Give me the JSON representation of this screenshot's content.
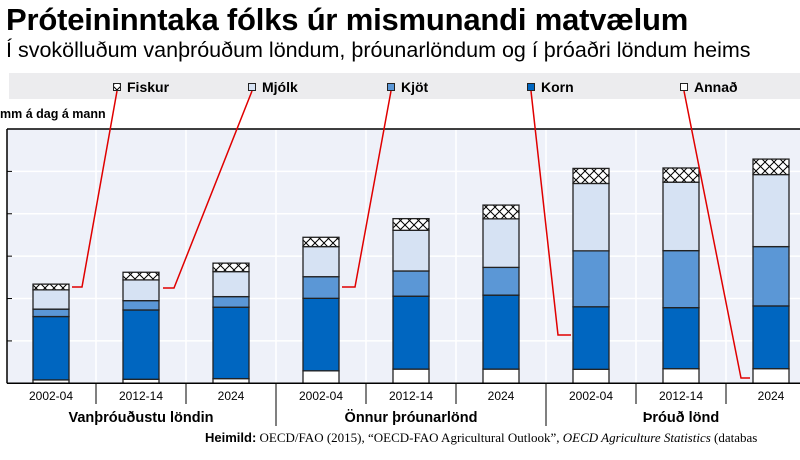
{
  "header": {
    "title": "Próteininntaka fólks úr mismunandi matvælum",
    "subtitle": "Í svokölluðum vanþróuðum löndum, þróunarlöndum og í þróaðri löndum heims"
  },
  "source": {
    "label": "Heimild:",
    "text": " OECD/FAO (2015), “OECD-FAO Agricultural Outlook”, ",
    "italic": "OECD Agriculture Statistics",
    "tail": " (databas"
  },
  "chart_data": {
    "type": "bar",
    "stacked": true,
    "title": "Próteininntaka fólks úr mismunandi matvælum",
    "ylabel": "mm á dag á mann",
    "ylim": [
      0,
      120
    ],
    "grid": true,
    "legend_position": "top",
    "groups": [
      {
        "label": "Vanþróuðustu löndin",
        "categories": [
          "2002-04",
          "2012-14",
          "2024"
        ]
      },
      {
        "label": "Önnur þróunarlönd",
        "categories": [
          "2002-04",
          "2012-14",
          "2024"
        ]
      },
      {
        "label": "Þróuð lönd",
        "categories": [
          "2002-04",
          "2012-14",
          "2024"
        ]
      }
    ],
    "series": [
      {
        "name": "Annað",
        "color": "#ffffff",
        "values": [
          1.6,
          1.9,
          2.2,
          5.9,
          6.7,
          6.7,
          6.6,
          6.9,
          6.9
        ]
      },
      {
        "name": "Korn",
        "color": "#0066c0",
        "values": [
          29.9,
          32.7,
          33.7,
          34.2,
          34.4,
          34.9,
          29.5,
          28.8,
          29.6
        ]
      },
      {
        "name": "Kjöt",
        "color": "#5b97d6",
        "values": [
          3.5,
          4.4,
          5.0,
          10.2,
          11.9,
          13.1,
          26.4,
          26.9,
          28.0
        ]
      },
      {
        "name": "Mjólk",
        "color": "#d6e2f3",
        "values": [
          9.1,
          9.8,
          11.8,
          14.2,
          19.2,
          22.9,
          31.8,
          32.3,
          34.0
        ]
      },
      {
        "name": "Fiskur",
        "color": "hatch",
        "values": [
          2.7,
          3.6,
          4.0,
          4.4,
          5.5,
          6.5,
          7.1,
          6.7,
          7.3
        ]
      }
    ],
    "legend_order": [
      "Fiskur",
      "Mjólk",
      "Kjöt",
      "Korn",
      "Annað"
    ],
    "colors": {
      "plot_bg": "#eef1f9",
      "legend_bg": "#ececee",
      "leader": "#e00000"
    }
  }
}
